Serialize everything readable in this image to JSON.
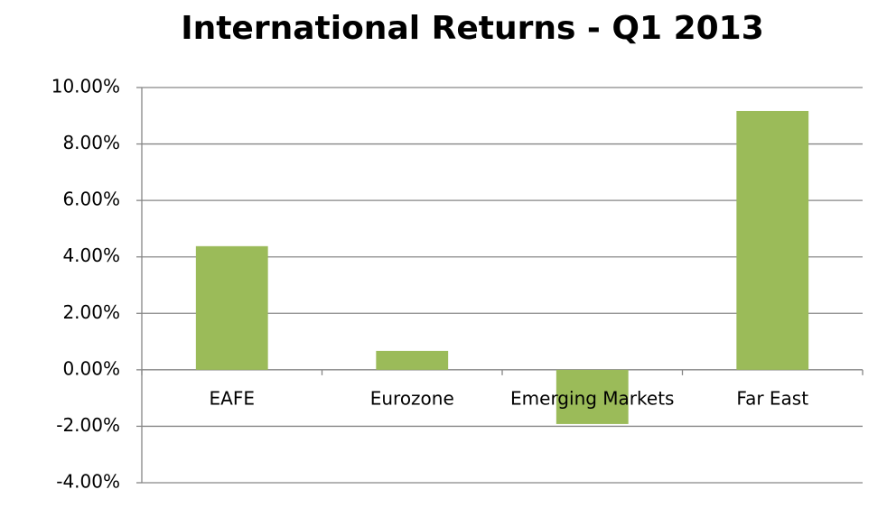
{
  "chart_data": {
    "type": "bar",
    "title": "International Returns - Q1 2013",
    "categories": [
      "EAFE",
      "Eurozone",
      "Emerging Markets",
      "Far East"
    ],
    "values": [
      4.38,
      0.67,
      -1.92,
      9.17
    ],
    "color": "#9bbb59",
    "ylim": [
      -4,
      10
    ],
    "yticks": [
      {
        "value": -4,
        "label": "-4.00%"
      },
      {
        "value": -2,
        "label": "-2.00%"
      },
      {
        "value": 0,
        "label": "0.00%"
      },
      {
        "value": 2,
        "label": "2.00%"
      },
      {
        "value": 4,
        "label": "4.00%"
      },
      {
        "value": 6,
        "label": "6.00%"
      },
      {
        "value": 8,
        "label": "8.00%"
      },
      {
        "value": 10,
        "label": "10.00%"
      }
    ],
    "grid": true
  }
}
